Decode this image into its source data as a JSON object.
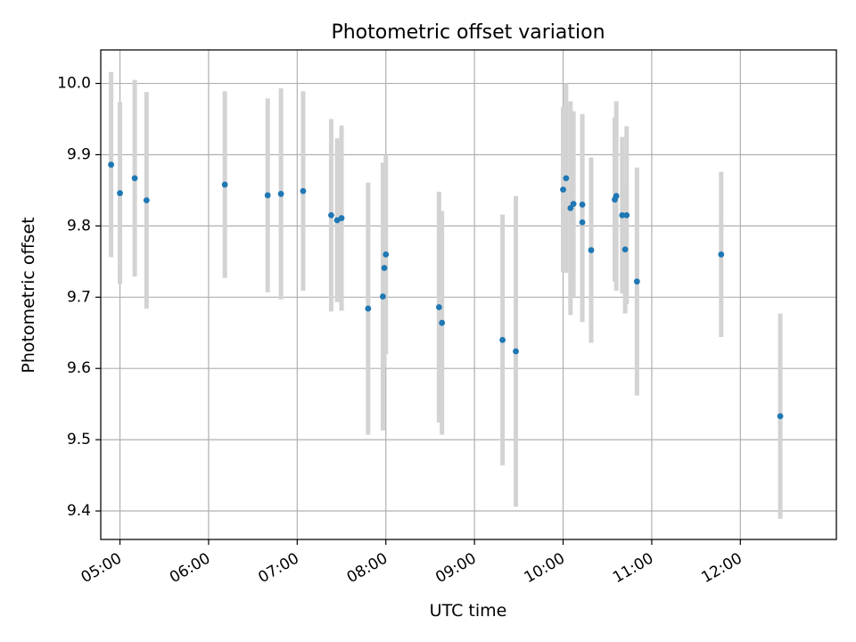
{
  "chart_data": {
    "type": "scatter",
    "title": "Photometric offset variation",
    "xlabel": "UTC time",
    "ylabel": "Photometric offset",
    "x_ticks": [
      "05:00",
      "06:00",
      "07:00",
      "08:00",
      "09:00",
      "10:00",
      "11:00",
      "12:00"
    ],
    "y_ticks": [
      "9.4",
      "9.5",
      "9.6",
      "9.7",
      "9.8",
      "9.9",
      "10.0"
    ],
    "xlim": [
      "04:47",
      "13:05"
    ],
    "ylim": [
      9.36,
      10.047
    ],
    "grid": true,
    "colors": {
      "point": "#1f77b4",
      "errorbar": "#d3d3d3",
      "grid": "#b0b0b0"
    },
    "points": [
      {
        "x": "04:54",
        "y": 9.886,
        "err": 0.13
      },
      {
        "x": "05:00",
        "y": 9.846,
        "err": 0.128
      },
      {
        "x": "05:10",
        "y": 9.867,
        "err": 0.138
      },
      {
        "x": "05:18",
        "y": 9.836,
        "err": 0.152
      },
      {
        "x": "06:11",
        "y": 9.858,
        "err": 0.131
      },
      {
        "x": "06:40",
        "y": 9.843,
        "err": 0.136
      },
      {
        "x": "06:49",
        "y": 9.845,
        "err": 0.148
      },
      {
        "x": "07:04",
        "y": 9.849,
        "err": 0.14
      },
      {
        "x": "07:23",
        "y": 9.815,
        "err": 0.135
      },
      {
        "x": "07:27",
        "y": 9.808,
        "err": 0.115
      },
      {
        "x": "07:30",
        "y": 9.811,
        "err": 0.13
      },
      {
        "x": "07:48",
        "y": 9.684,
        "err": 0.177
      },
      {
        "x": "07:58",
        "y": 9.701,
        "err": 0.188
      },
      {
        "x": "07:59",
        "y": 9.741,
        "err": 0.14
      },
      {
        "x": "08:00",
        "y": 9.76,
        "err": 0.14
      },
      {
        "x": "08:36",
        "y": 9.686,
        "err": 0.162
      },
      {
        "x": "08:38",
        "y": 9.664,
        "err": 0.157
      },
      {
        "x": "09:19",
        "y": 9.64,
        "err": 0.176
      },
      {
        "x": "09:28",
        "y": 9.624,
        "err": 0.218
      },
      {
        "x": "10:00",
        "y": 9.851,
        "err": 0.116
      },
      {
        "x": "10:02",
        "y": 9.867,
        "err": 0.133
      },
      {
        "x": "10:05",
        "y": 9.825,
        "err": 0.15
      },
      {
        "x": "10:07",
        "y": 9.831,
        "err": 0.13
      },
      {
        "x": "10:13",
        "y": 9.805,
        "err": 0.14
      },
      {
        "x": "10:13",
        "y": 9.83,
        "err": 0.127
      },
      {
        "x": "10:19",
        "y": 9.766,
        "err": 0.13
      },
      {
        "x": "10:35",
        "y": 9.837,
        "err": 0.115
      },
      {
        "x": "10:36",
        "y": 9.842,
        "err": 0.133
      },
      {
        "x": "10:40",
        "y": 9.815,
        "err": 0.11
      },
      {
        "x": "10:42",
        "y": 9.767,
        "err": 0.09
      },
      {
        "x": "10:43",
        "y": 9.815,
        "err": 0.125
      },
      {
        "x": "10:50",
        "y": 9.722,
        "err": 0.16
      },
      {
        "x": "11:47",
        "y": 9.76,
        "err": 0.116
      },
      {
        "x": "12:27",
        "y": 9.533,
        "err": 0.144
      }
    ]
  }
}
